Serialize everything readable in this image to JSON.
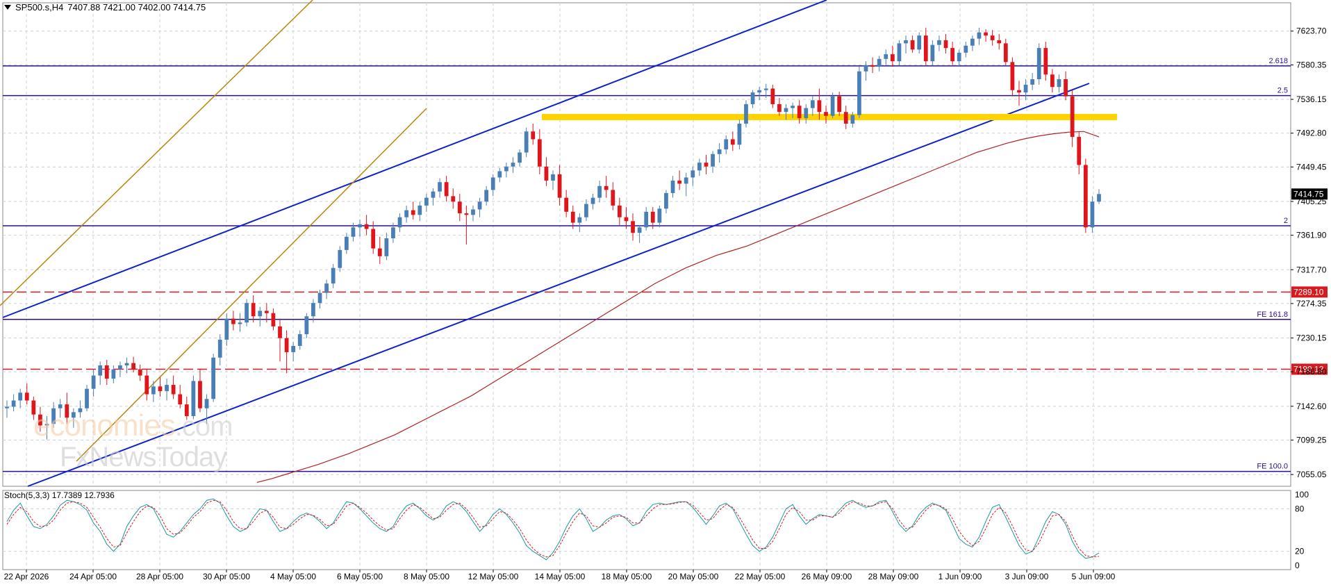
{
  "header": {
    "symbol": "SP500.s,H4",
    "ohlc": "7407.88 7421.00 7402.00 7414.75"
  },
  "watermark": {
    "brand": "economies",
    "domain": ".com",
    "sub": "FxNewsToday"
  },
  "price_axis": {
    "ticks": [
      "7623.70",
      "7580.35",
      "7536.15",
      "7492.80",
      "7449.45",
      "7405.25",
      "7361.90",
      "7317.70",
      "7274.35",
      "7230.15",
      "7186.80",
      "7142.60",
      "7099.25",
      "7055.05"
    ],
    "current_price": "7414.75"
  },
  "levels": [
    {
      "price": 7579.0,
      "label": "2.618",
      "style": "solid",
      "color": "#2b0f8f"
    },
    {
      "price": 7541.0,
      "label": "2.5",
      "style": "solid",
      "color": "#2b0f8f"
    },
    {
      "price": 7374.0,
      "label": "2",
      "style": "solid",
      "color": "#2b0f8f"
    },
    {
      "price": 7289.1,
      "label": "7289.10",
      "style": "dashed",
      "color": "#d71920",
      "boxed": true
    },
    {
      "price": 7254.0,
      "label": "FE 161.8",
      "style": "solid",
      "color": "#2b0f8f"
    },
    {
      "price": 7190.12,
      "label": "7190.12",
      "style": "dashed",
      "color": "#d71920",
      "boxed": true
    },
    {
      "price": 7059.0,
      "label": "FE 100.0",
      "style": "solid",
      "color": "#2b0f8f"
    }
  ],
  "time_axis": [
    "22 Apr 2026",
    "24 Apr 05:00",
    "28 Apr 05:00",
    "30 Apr 05:00",
    "4 May 05:00",
    "6 May 05:00",
    "8 May 05:00",
    "12 May 05:00",
    "14 May 05:00",
    "18 May 05:00",
    "20 May 05:00",
    "22 May 05:00",
    "26 May 09:00",
    "28 May 09:00",
    "1 Jun 09:00",
    "3 Jun 09:00",
    "5 Jun 09:00"
  ],
  "stochastic": {
    "label": "Stoch(5,3,3) 17.7389 12.7936",
    "axis_ticks": [
      "100",
      "80",
      "20",
      "0"
    ]
  },
  "chart_data": {
    "type": "candlestick",
    "title": "SP500.s,H4",
    "ylim": [
      7040,
      7660
    ],
    "bull_color": "#4a7fb5",
    "bear_color": "#e0141b",
    "candles": [
      [
        7140,
        7150,
        7128,
        7142
      ],
      [
        7142,
        7158,
        7136,
        7150
      ],
      [
        7150,
        7165,
        7140,
        7160
      ],
      [
        7160,
        7172,
        7145,
        7150
      ],
      [
        7150,
        7155,
        7125,
        7132
      ],
      [
        7132,
        7142,
        7110,
        7118
      ],
      [
        7118,
        7130,
        7100,
        7120
      ],
      [
        7120,
        7148,
        7115,
        7140
      ],
      [
        7140,
        7152,
        7128,
        7145
      ],
      [
        7145,
        7160,
        7120,
        7128
      ],
      [
        7128,
        7140,
        7115,
        7135
      ],
      [
        7135,
        7150,
        7128,
        7140
      ],
      [
        7140,
        7170,
        7136,
        7165
      ],
      [
        7165,
        7190,
        7155,
        7182
      ],
      [
        7182,
        7200,
        7170,
        7195
      ],
      [
        7195,
        7202,
        7170,
        7178
      ],
      [
        7178,
        7195,
        7172,
        7190
      ],
      [
        7190,
        7200,
        7180,
        7195
      ],
      [
        7195,
        7205,
        7185,
        7198
      ],
      [
        7198,
        7206,
        7186,
        7190
      ],
      [
        7190,
        7196,
        7175,
        7182
      ],
      [
        7182,
        7190,
        7150,
        7158
      ],
      [
        7158,
        7175,
        7148,
        7168
      ],
      [
        7168,
        7180,
        7155,
        7162
      ],
      [
        7162,
        7178,
        7150,
        7170
      ],
      [
        7170,
        7182,
        7152,
        7158
      ],
      [
        7158,
        7170,
        7140,
        7145
      ],
      [
        7145,
        7155,
        7125,
        7130
      ],
      [
        7130,
        7182,
        7126,
        7175
      ],
      [
        7175,
        7190,
        7135,
        7140
      ],
      [
        7140,
        7158,
        7120,
        7152
      ],
      [
        7152,
        7210,
        7148,
        7205
      ],
      [
        7205,
        7235,
        7195,
        7228
      ],
      [
        7228,
        7262,
        7220,
        7255
      ],
      [
        7255,
        7265,
        7240,
        7248
      ],
      [
        7248,
        7262,
        7238,
        7250
      ],
      [
        7250,
        7280,
        7245,
        7275
      ],
      [
        7275,
        7285,
        7250,
        7258
      ],
      [
        7258,
        7270,
        7245,
        7265
      ],
      [
        7265,
        7275,
        7250,
        7262
      ],
      [
        7262,
        7268,
        7240,
        7245
      ],
      [
        7245,
        7255,
        7200,
        7230
      ],
      [
        7230,
        7240,
        7185,
        7212
      ],
      [
        7212,
        7225,
        7200,
        7220
      ],
      [
        7220,
        7240,
        7215,
        7235
      ],
      [
        7235,
        7262,
        7230,
        7258
      ],
      [
        7258,
        7280,
        7250,
        7275
      ],
      [
        7275,
        7292,
        7268,
        7288
      ],
      [
        7288,
        7305,
        7280,
        7300
      ],
      [
        7300,
        7325,
        7294,
        7320
      ],
      [
        7320,
        7348,
        7315,
        7343
      ],
      [
        7343,
        7365,
        7338,
        7360
      ],
      [
        7360,
        7378,
        7354,
        7372
      ],
      [
        7372,
        7382,
        7360,
        7376
      ],
      [
        7376,
        7388,
        7362,
        7370
      ],
      [
        7370,
        7380,
        7338,
        7345
      ],
      [
        7345,
        7360,
        7325,
        7335
      ],
      [
        7335,
        7365,
        7330,
        7358
      ],
      [
        7358,
        7378,
        7352,
        7372
      ],
      [
        7372,
        7390,
        7366,
        7385
      ],
      [
        7385,
        7400,
        7378,
        7394
      ],
      [
        7394,
        7405,
        7382,
        7388
      ],
      [
        7388,
        7405,
        7380,
        7400
      ],
      [
        7400,
        7415,
        7392,
        7410
      ],
      [
        7410,
        7422,
        7400,
        7418
      ],
      [
        7418,
        7435,
        7410,
        7430
      ],
      [
        7430,
        7438,
        7405,
        7412
      ],
      [
        7412,
        7422,
        7396,
        7405
      ],
      [
        7405,
        7415,
        7380,
        7390
      ],
      [
        7390,
        7400,
        7350,
        7388
      ],
      [
        7388,
        7400,
        7380,
        7395
      ],
      [
        7395,
        7410,
        7385,
        7405
      ],
      [
        7405,
        7425,
        7400,
        7420
      ],
      [
        7420,
        7440,
        7412,
        7436
      ],
      [
        7436,
        7448,
        7430,
        7444
      ],
      [
        7444,
        7455,
        7436,
        7450
      ],
      [
        7450,
        7462,
        7442,
        7455
      ],
      [
        7455,
        7472,
        7450,
        7468
      ],
      [
        7468,
        7500,
        7462,
        7495
      ],
      [
        7495,
        7505,
        7478,
        7485
      ],
      [
        7485,
        7498,
        7440,
        7450
      ],
      [
        7450,
        7462,
        7425,
        7432
      ],
      [
        7432,
        7445,
        7420,
        7440
      ],
      [
        7440,
        7452,
        7400,
        7410
      ],
      [
        7410,
        7420,
        7385,
        7392
      ],
      [
        7392,
        7400,
        7370,
        7378
      ],
      [
        7378,
        7390,
        7366,
        7385
      ],
      [
        7385,
        7408,
        7380,
        7402
      ],
      [
        7402,
        7415,
        7395,
        7410
      ],
      [
        7410,
        7432,
        7404,
        7425
      ],
      [
        7425,
        7438,
        7410,
        7420
      ],
      [
        7420,
        7430,
        7394,
        7400
      ],
      [
        7400,
        7410,
        7375,
        7385
      ],
      [
        7385,
        7398,
        7370,
        7380
      ],
      [
        7380,
        7390,
        7355,
        7365
      ],
      [
        7365,
        7375,
        7352,
        7372
      ],
      [
        7372,
        7398,
        7368,
        7392
      ],
      [
        7392,
        7398,
        7370,
        7378
      ],
      [
        7378,
        7400,
        7372,
        7396
      ],
      [
        7396,
        7420,
        7390,
        7416
      ],
      [
        7416,
        7438,
        7410,
        7432
      ],
      [
        7432,
        7445,
        7420,
        7428
      ],
      [
        7428,
        7442,
        7412,
        7436
      ],
      [
        7436,
        7450,
        7425,
        7445
      ],
      [
        7445,
        7460,
        7438,
        7455
      ],
      [
        7455,
        7465,
        7440,
        7450
      ],
      [
        7450,
        7470,
        7442,
        7466
      ],
      [
        7466,
        7480,
        7455,
        7472
      ],
      [
        7472,
        7490,
        7466,
        7485
      ],
      [
        7485,
        7495,
        7470,
        7478
      ],
      [
        7478,
        7510,
        7472,
        7505
      ],
      [
        7505,
        7535,
        7500,
        7530
      ],
      [
        7530,
        7548,
        7525,
        7545
      ],
      [
        7545,
        7552,
        7535,
        7548
      ],
      [
        7548,
        7556,
        7538,
        7550
      ],
      [
        7550,
        7555,
        7525,
        7530
      ],
      [
        7530,
        7538,
        7515,
        7520
      ],
      [
        7520,
        7530,
        7510,
        7525
      ],
      [
        7525,
        7532,
        7512,
        7528
      ],
      [
        7528,
        7535,
        7505,
        7512
      ],
      [
        7512,
        7530,
        7505,
        7525
      ],
      [
        7525,
        7540,
        7515,
        7535
      ],
      [
        7535,
        7550,
        7510,
        7520
      ],
      [
        7520,
        7528,
        7505,
        7515
      ],
      [
        7515,
        7545,
        7512,
        7540
      ],
      [
        7540,
        7546,
        7515,
        7520
      ],
      [
        7520,
        7528,
        7498,
        7505
      ],
      [
        7505,
        7520,
        7500,
        7516
      ],
      [
        7516,
        7578,
        7512,
        7572
      ],
      [
        7572,
        7585,
        7560,
        7580
      ],
      [
        7580,
        7590,
        7570,
        7578
      ],
      [
        7578,
        7592,
        7572,
        7588
      ],
      [
        7588,
        7600,
        7580,
        7594
      ],
      [
        7594,
        7605,
        7578,
        7585
      ],
      [
        7585,
        7612,
        7580,
        7608
      ],
      [
        7608,
        7618,
        7595,
        7612
      ],
      [
        7612,
        7618,
        7596,
        7600
      ],
      [
        7600,
        7622,
        7595,
        7618
      ],
      [
        7618,
        7628,
        7580,
        7585
      ],
      [
        7585,
        7612,
        7580,
        7606
      ],
      [
        7606,
        7618,
        7598,
        7612
      ],
      [
        7612,
        7620,
        7595,
        7602
      ],
      [
        7602,
        7610,
        7580,
        7585
      ],
      [
        7585,
        7600,
        7578,
        7596
      ],
      [
        7596,
        7610,
        7590,
        7605
      ],
      [
        7605,
        7618,
        7598,
        7614
      ],
      [
        7614,
        7628,
        7606,
        7622
      ],
      [
        7622,
        7626,
        7610,
        7618
      ],
      [
        7618,
        7625,
        7605,
        7612
      ],
      [
        7612,
        7620,
        7600,
        7608
      ],
      [
        7608,
        7614,
        7580,
        7584
      ],
      [
        7584,
        7590,
        7540,
        7548
      ],
      [
        7548,
        7560,
        7528,
        7545
      ],
      [
        7545,
        7562,
        7535,
        7555
      ],
      [
        7555,
        7570,
        7548,
        7562
      ],
      [
        7562,
        7608,
        7555,
        7602
      ],
      [
        7602,
        7610,
        7560,
        7568
      ],
      [
        7568,
        7575,
        7545,
        7552
      ],
      [
        7552,
        7568,
        7545,
        7562
      ],
      [
        7562,
        7572,
        7535,
        7540
      ],
      [
        7540,
        7548,
        7475,
        7488
      ],
      [
        7488,
        7495,
        7440,
        7452
      ],
      [
        7452,
        7460,
        7365,
        7372
      ],
      [
        7372,
        7412,
        7365,
        7405
      ],
      [
        7405,
        7421,
        7402,
        7414.75
      ]
    ],
    "moving_average": {
      "name": "MA",
      "color": "#b22222",
      "values": [
        7045,
        7050,
        7056,
        7062,
        7068,
        7075,
        7082,
        7090,
        7098,
        7106,
        7116,
        7126,
        7136,
        7146,
        7156,
        7168,
        7180,
        7192,
        7204,
        7216,
        7228,
        7240,
        7252,
        7264,
        7276,
        7288,
        7300,
        7310,
        7320,
        7328,
        7336,
        7342,
        7348,
        7356,
        7364,
        7372,
        7380,
        7388,
        7396,
        7404,
        7412,
        7420,
        7428,
        7436,
        7444,
        7452,
        7460,
        7468,
        7474,
        7480,
        7485,
        7489,
        7492,
        7494,
        7495,
        7488
      ]
    },
    "stoch_k": [
      62,
      78,
      88,
      70,
      55,
      52,
      58,
      70,
      85,
      92,
      90,
      86,
      78,
      60,
      48,
      30,
      20,
      30,
      55,
      70,
      82,
      86,
      80,
      62,
      44,
      40,
      48,
      60,
      72,
      80,
      92,
      94,
      88,
      70,
      55,
      48,
      52,
      68,
      80,
      78,
      62,
      48,
      52,
      62,
      70,
      74,
      70,
      62,
      52,
      60,
      76,
      90,
      88,
      80,
      70,
      60,
      52,
      48,
      55,
      72,
      84,
      88,
      80,
      70,
      64,
      70,
      84,
      90,
      86,
      76,
      62,
      48,
      58,
      72,
      80,
      72,
      60,
      46,
      28,
      20,
      14,
      8,
      18,
      34,
      54,
      70,
      80,
      66,
      48,
      54,
      64,
      70,
      72,
      66,
      56,
      60,
      76,
      86,
      88,
      86,
      88,
      90,
      90,
      82,
      70,
      58,
      70,
      84,
      88,
      80,
      62,
      44,
      28,
      20,
      26,
      40,
      60,
      80,
      86,
      70,
      58,
      66,
      72,
      70,
      68,
      78,
      88,
      92,
      86,
      82,
      84,
      90,
      92,
      76,
      58,
      48,
      56,
      72,
      82,
      88,
      84,
      78,
      58,
      38,
      30,
      26,
      40,
      62,
      82,
      86,
      68,
      48,
      28,
      16,
      20,
      40,
      62,
      76,
      72,
      58,
      34,
      18,
      10,
      12,
      17.7
    ],
    "stoch_d": [
      58,
      72,
      82,
      76,
      62,
      55,
      56,
      64,
      78,
      88,
      90,
      88,
      82,
      68,
      54,
      38,
      26,
      28,
      46,
      62,
      76,
      84,
      82,
      70,
      52,
      44,
      46,
      56,
      68,
      76,
      88,
      92,
      90,
      78,
      62,
      52,
      52,
      62,
      74,
      78,
      68,
      54,
      52,
      58,
      66,
      72,
      71,
      65,
      56,
      58,
      70,
      84,
      88,
      82,
      74,
      64,
      56,
      50,
      52,
      66,
      78,
      86,
      82,
      74,
      66,
      68,
      78,
      86,
      88,
      80,
      68,
      54,
      56,
      66,
      76,
      74,
      64,
      52,
      36,
      24,
      16,
      12,
      14,
      28,
      46,
      62,
      74,
      70,
      56,
      54,
      60,
      68,
      70,
      68,
      60,
      60,
      70,
      80,
      86,
      86,
      87,
      89,
      90,
      85,
      75,
      64,
      66,
      78,
      86,
      82,
      68,
      52,
      36,
      24,
      24,
      34,
      52,
      72,
      82,
      76,
      64,
      64,
      70,
      70,
      68,
      74,
      84,
      90,
      88,
      84,
      84,
      88,
      90,
      80,
      64,
      52,
      54,
      66,
      78,
      86,
      85,
      80,
      66,
      48,
      36,
      28,
      34,
      52,
      72,
      82,
      74,
      56,
      36,
      22,
      20,
      32,
      52,
      70,
      72,
      62,
      42,
      24,
      14,
      12,
      12.8
    ]
  }
}
